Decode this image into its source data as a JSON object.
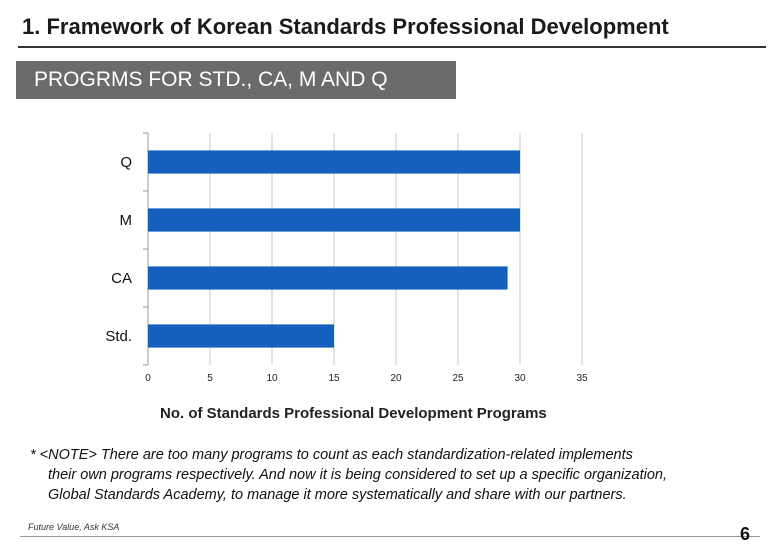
{
  "header": {
    "title": "1. Framework of Korean Standards Professional Development",
    "banner": "PROGRMS FOR STD., CA, M AND Q"
  },
  "chart_data": {
    "type": "bar",
    "orientation": "horizontal",
    "categories": [
      "Std.",
      "CA",
      "M",
      "Q"
    ],
    "values": [
      15,
      29,
      30,
      30
    ],
    "xlabel": "No. of Standards Professional Development Programs",
    "ylabel": "",
    "xlim": [
      0,
      35
    ],
    "xticks": [
      0,
      5,
      10,
      15,
      20,
      25,
      30,
      35
    ],
    "grid": "vertical",
    "bar_color": "#1560bd"
  },
  "note": {
    "line1": "* <NOTE> There are too many programs to count as each standardization-related implements",
    "line2": "their own programs respectively. And now it is being considered to set up a specific organization,",
    "line3": "Global Standards Academy, to manage it more systematically and share with our partners."
  },
  "footer": {
    "brand": "Future Value, Ask KSA",
    "page": "6"
  }
}
